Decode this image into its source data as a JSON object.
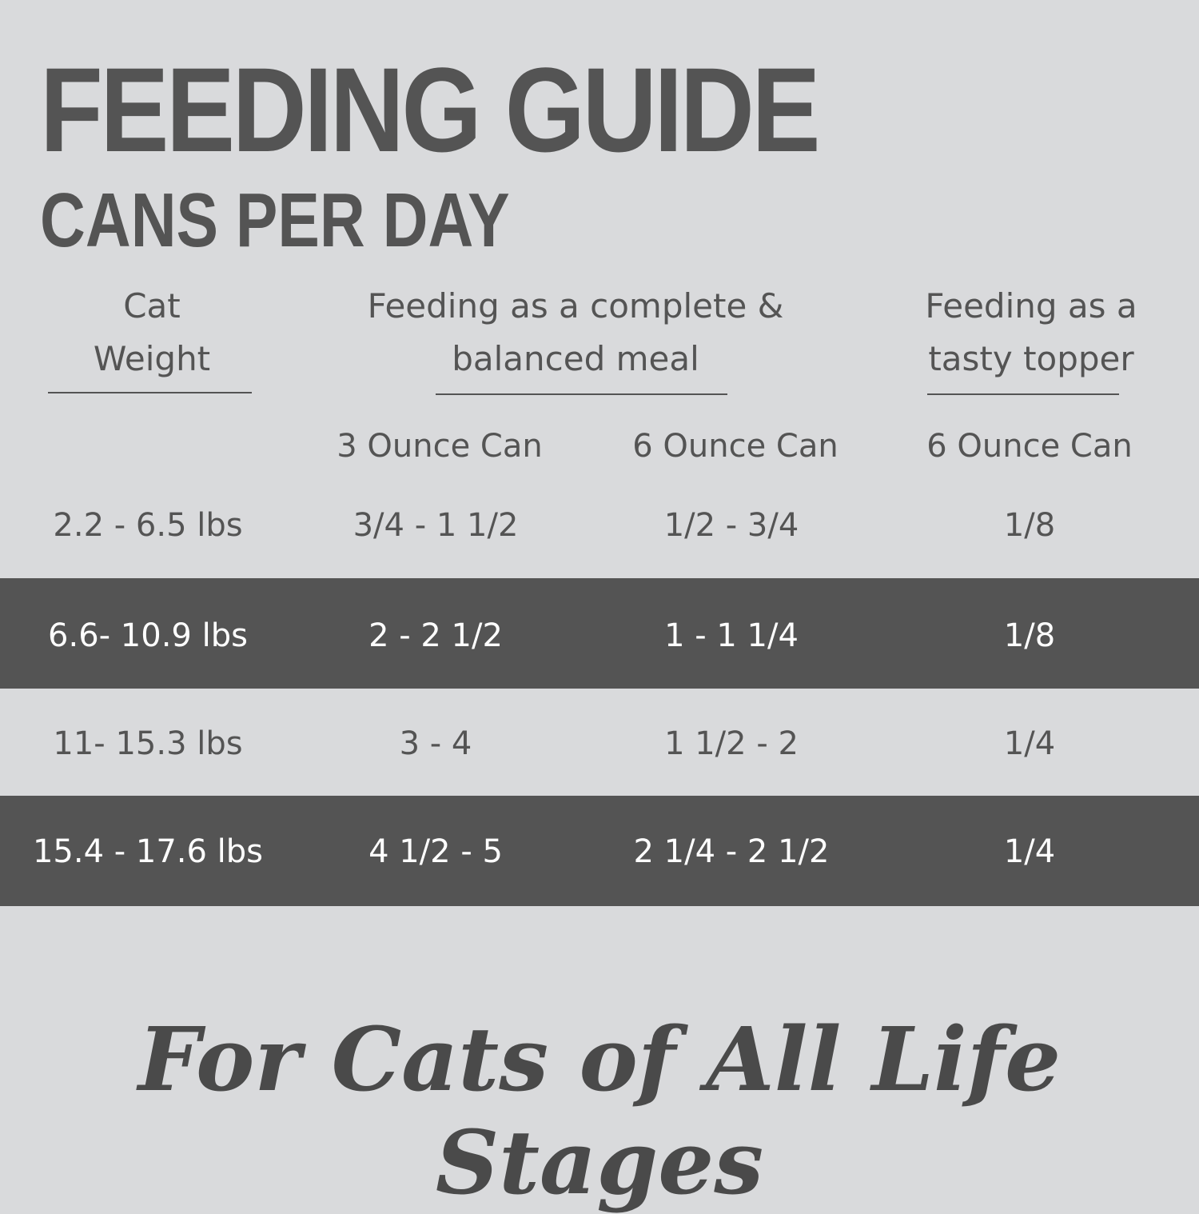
{
  "header": {
    "title": "FEEDING GUIDE",
    "subtitle": "CANS PER DAY"
  },
  "table": {
    "group_headers": [
      "Cat Weight",
      "Feeding as a complete & balanced meal",
      "Feeding as a tasty topper"
    ],
    "sub_headers": [
      "3 Ounce Can",
      "6 Ounce Can",
      "6 Ounce Can"
    ],
    "rows": [
      [
        "2.2 - 6.5 lbs",
        "3/4 - 1 1/2",
        "1/2 - 3/4",
        "1/8"
      ],
      [
        "6.6- 10.9 lbs",
        "2 - 2 1/2",
        "1 - 1 1/4",
        "1/8"
      ],
      [
        "11- 15.3 lbs",
        "3 - 4",
        "1 1/2 - 2",
        "1/4"
      ],
      [
        "15.4 - 17.6 lbs",
        "4 1/2 - 5",
        "2 1/4 - 2 1/2",
        "1/4"
      ]
    ]
  },
  "footer": {
    "tagline": "For Cats of All Life Stages"
  }
}
